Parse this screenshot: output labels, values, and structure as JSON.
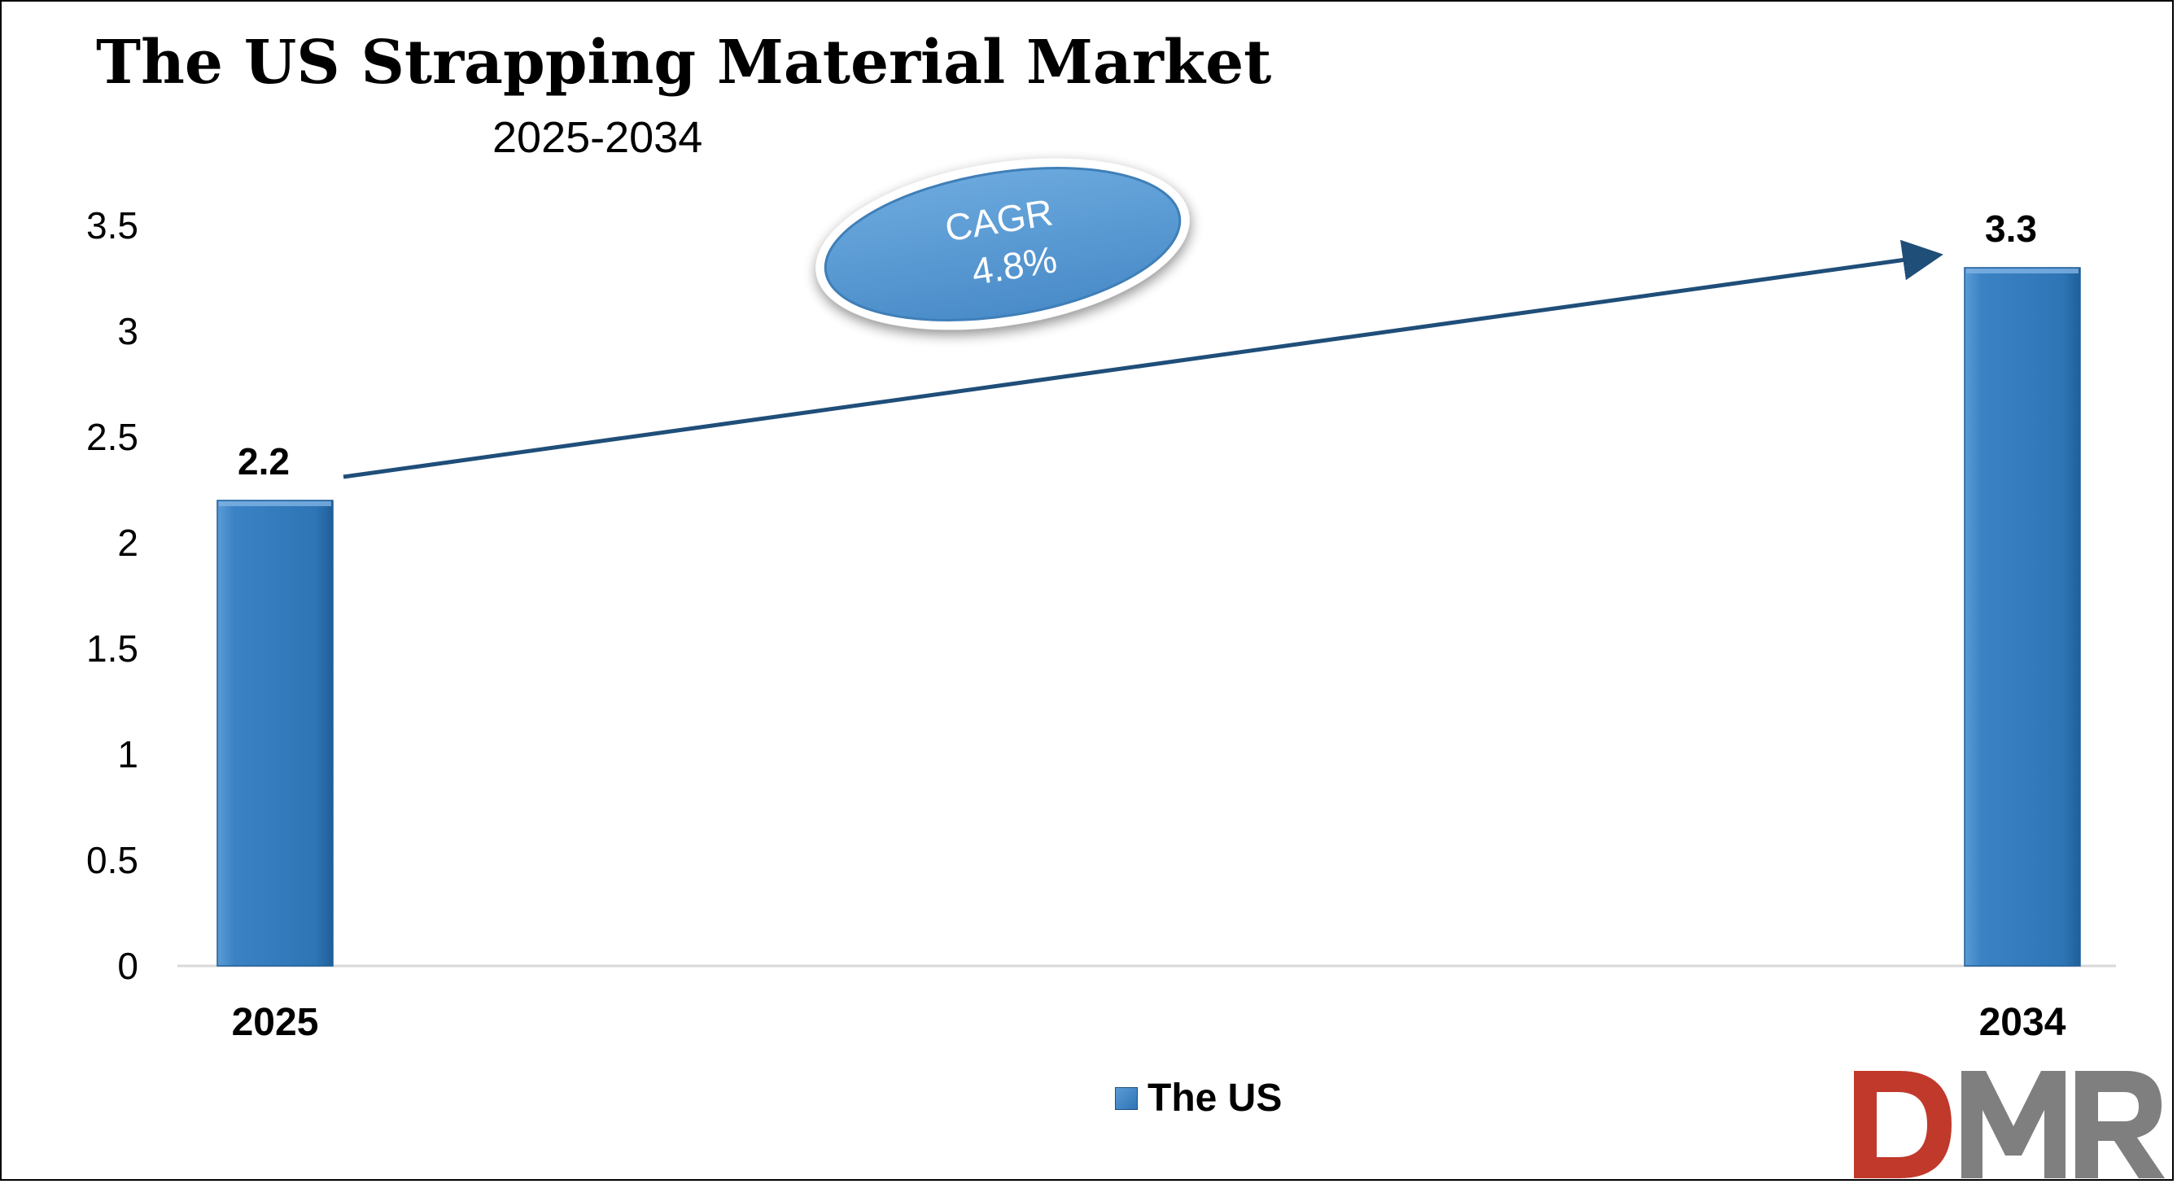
{
  "chart_data": {
    "type": "bar",
    "title": "The US Strapping Material Market",
    "subtitle": "2025-2034",
    "categories": [
      "2025",
      "2034"
    ],
    "series": [
      {
        "name": "The US",
        "values": [
          2.2,
          3.3
        ],
        "color": "#2e75b6"
      }
    ],
    "data_labels": [
      "2.2",
      "3.3"
    ],
    "ylim": [
      0,
      3.5
    ],
    "yticks": [
      0,
      0.5,
      1,
      1.5,
      2,
      2.5,
      3,
      3.5
    ],
    "ytick_labels": [
      "0",
      "0.5",
      "1",
      "1.5",
      "2",
      "2.5",
      "3",
      "3.5"
    ],
    "grid": false,
    "legend_position": "bottom-center",
    "annotation": {
      "line1": "CAGR",
      "line2": "4.8%"
    },
    "colors": {
      "bar": "#2e75b6",
      "bar_light": "#5b9bd5",
      "arrow": "#1f4e79",
      "ellipse": "#5b9bd5"
    }
  },
  "logo": {
    "text": "DMR",
    "colors": {
      "d": "#c0392b",
      "m": "#7f7f7f",
      "r": "#7f7f7f"
    }
  }
}
